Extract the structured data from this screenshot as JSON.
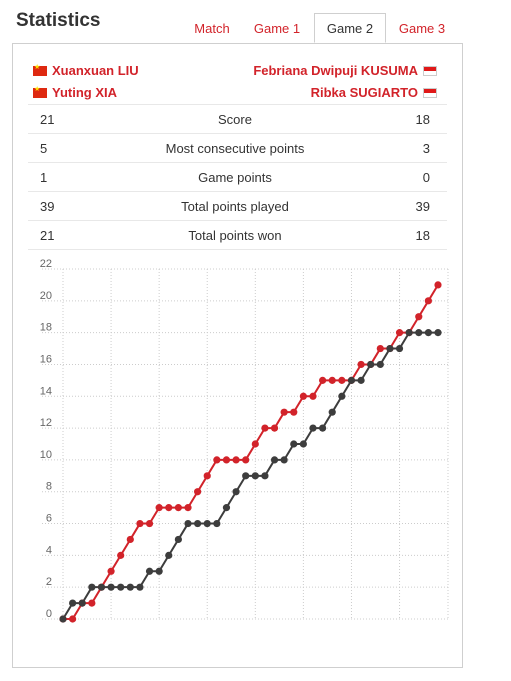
{
  "header": {
    "title": "Statistics"
  },
  "tabs": [
    {
      "label": "Match",
      "active": false
    },
    {
      "label": "Game 1",
      "active": false
    },
    {
      "label": "Game 2",
      "active": true
    },
    {
      "label": "Game 3",
      "active": false
    }
  ],
  "teams": {
    "left": [
      {
        "name": "Xuanxuan LIU",
        "flag": "china-flag-icon"
      },
      {
        "name": "Yuting XIA",
        "flag": "china-flag-icon"
      }
    ],
    "right": [
      {
        "name": "Febriana Dwipuji KUSUMA",
        "flag": "indonesia-flag-icon"
      },
      {
        "name": "Ribka SUGIARTO",
        "flag": "indonesia-flag-icon"
      }
    ]
  },
  "stats": [
    {
      "left": "21",
      "label": "Score",
      "right": "18"
    },
    {
      "left": "5",
      "label": "Most consecutive points",
      "right": "3"
    },
    {
      "left": "1",
      "label": "Game points",
      "right": "0"
    },
    {
      "left": "39",
      "label": "Total points played",
      "right": "39"
    },
    {
      "left": "21",
      "label": "Total points won",
      "right": "18"
    }
  ],
  "colors": {
    "accent": "#d2232a",
    "team_left": "#d2232a",
    "team_right": "#3d3d3d",
    "grid": "#cccccc"
  },
  "chart_data": {
    "type": "line",
    "x": [
      0,
      1,
      2,
      3,
      4,
      5,
      6,
      7,
      8,
      9,
      10,
      11,
      12,
      13,
      14,
      15,
      16,
      17,
      18,
      19,
      20,
      21,
      22,
      23,
      24,
      25,
      26,
      27,
      28,
      29,
      30,
      31,
      32,
      33,
      34,
      35,
      36,
      37,
      38,
      39
    ],
    "ylim": [
      0,
      22
    ],
    "yticks": [
      "0",
      "2",
      "4",
      "6",
      "8",
      "10",
      "12",
      "14",
      "16",
      "18",
      "20",
      "22"
    ],
    "grid": true,
    "series": [
      {
        "color": "#d2232a",
        "values": [
          0,
          0,
          1,
          1,
          2,
          3,
          4,
          5,
          6,
          6,
          7,
          7,
          7,
          7,
          8,
          9,
          10,
          10,
          10,
          10,
          11,
          12,
          12,
          13,
          13,
          14,
          14,
          15,
          15,
          15,
          15,
          16,
          16,
          17,
          17,
          18,
          18,
          19,
          20,
          21
        ]
      },
      {
        "color": "#3d3d3d",
        "values": [
          0,
          1,
          1,
          2,
          2,
          2,
          2,
          2,
          2,
          3,
          3,
          4,
          5,
          6,
          6,
          6,
          6,
          7,
          8,
          9,
          9,
          9,
          10,
          10,
          11,
          11,
          12,
          12,
          13,
          14,
          15,
          15,
          16,
          16,
          17,
          17,
          18,
          18,
          18,
          18
        ]
      }
    ]
  }
}
